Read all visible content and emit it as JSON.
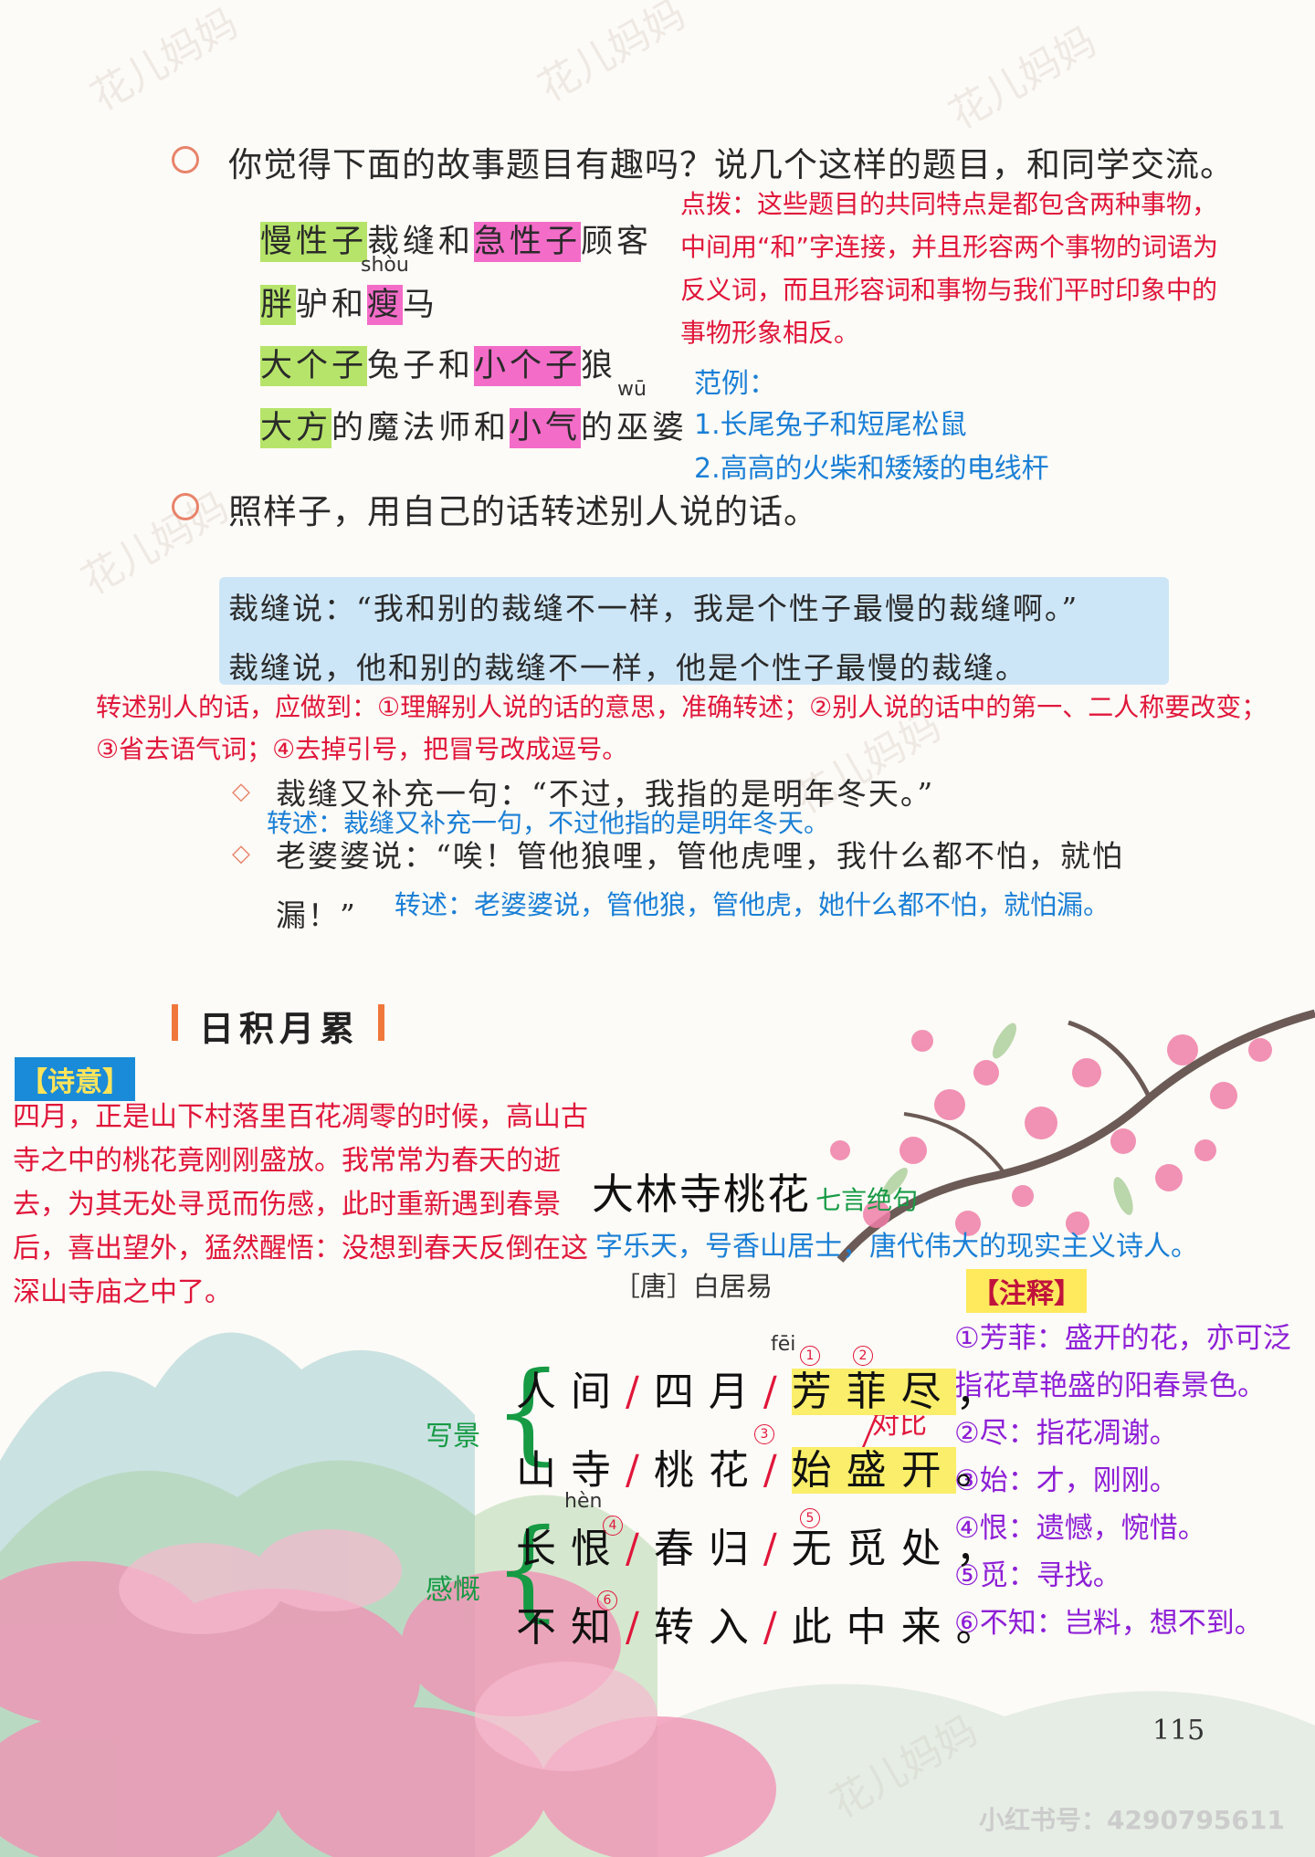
{
  "section1": {
    "question": "你觉得下面的故事题目有趣吗？说几个这样的题目，和同学交流。",
    "titles": [
      {
        "a": "慢性子",
        "b": "裁缝和",
        "c": "急性子",
        "d": "顾客"
      },
      {
        "a": "胖",
        "b": "驴和",
        "c": "瘦",
        "d": "马",
        "pinyin": "shòu"
      },
      {
        "a": "大个子",
        "b": "兔子和",
        "c": "小个子",
        "d": "狼"
      },
      {
        "a": "大方",
        "b": "的魔法师和",
        "c": "小气",
        "d": "的巫婆",
        "pinyin": "wū"
      }
    ],
    "tip": "点拨：这些题目的共同特点是都包含两种事物，中间用“和”字连接，并且形容两个事物的词语为反义词，而且形容词和事物与我们平时印象中的事物形象相反。",
    "example_label": "范例：",
    "examples": [
      "1.长尾兔子和短尾松鼠",
      "2.高高的火柴和矮矮的电线杆"
    ]
  },
  "section2": {
    "question": "照样子，用自己的话转述别人说的话。",
    "quote": "裁缝说：“我和别的裁缝不一样，我是个性子最慢的裁缝啊。”",
    "restated": "裁缝说，他和别的裁缝不一样，他是个性子最慢的裁缝。",
    "tip": "转述别人的话，应做到：①理解别人说的话的意思，准确转述；②别人说的话中的第一、二人称要改变；③省去语气词；④去掉引号，把冒号改成逗号。",
    "ex1": "裁缝又补充一句：“不过，我指的是明年冬天。”",
    "ans1": "转述：裁缝又补充一句，不过他指的是明年冬天。",
    "ex2a": "老婆婆说：“唉！管他狼哩，管他虎哩，我什么都不怕，就怕",
    "ex2b": "漏！”",
    "ans2": "转述：老婆婆说，管他狼，管他虎，她什么都不怕，就怕漏。"
  },
  "section3": {
    "title": "日积月累",
    "meaning_tag": "【诗意】",
    "meaning": "四月，正是山下村落里百花凋零的时候，高山古寺之中的桃花竟刚刚盛放。我常常为春天的逝去，为其无处寻觅而伤感，此时重新遇到春景后，喜出望外，猛然醒悟：没想到春天反倒在这深山寺庙之中了。",
    "poem_title": "大林寺桃花",
    "poem_type": "七言绝句",
    "poet_note": "字乐天，号香山居士，唐代伟大的现实主义诗人。",
    "author": "［唐］白居易",
    "label_scene": "写景",
    "label_feel": "感慨",
    "label_contrast": "对比",
    "lines": [
      {
        "p1": "人间",
        "p2": "四月",
        "p3": "芳菲尽",
        "end": "，",
        "pinyin": "fēi"
      },
      {
        "p1": "山寺",
        "p2": "桃花",
        "p3": "始盛开",
        "end": "。"
      },
      {
        "p1": "长恨",
        "p2": "春归",
        "p3": "无觅处",
        "end": "，",
        "pinyin": "hèn"
      },
      {
        "p1": "不知",
        "p2": "转入",
        "p3": "此中来",
        "end": "。"
      }
    ],
    "notes_tag": "【注释】",
    "notes": [
      "①芳菲：盛开的花，亦可泛",
      "指花草艳盛的阳春景色。",
      "②尽：指花凋谢。",
      "③始：才，刚刚。",
      "④恨：遗憾，惋惜。",
      "⑤觅：寻找。",
      "⑥不知：岂料，想不到。"
    ],
    "page_number": "115"
  },
  "watermark": {
    "mark": "花儿妈妈",
    "footer": "小红书号：4290795611"
  }
}
